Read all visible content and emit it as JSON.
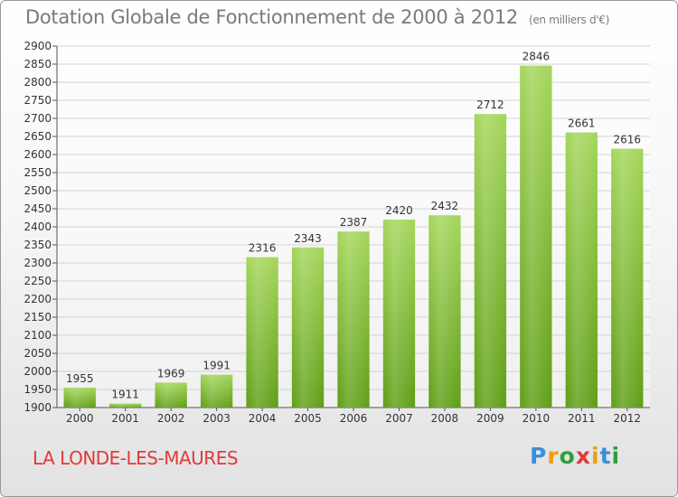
{
  "title": "Dotation Globale de Fonctionnement de 2000 à 2012",
  "unit": "(en milliers d'€)",
  "place": "LA LONDE-LES-MAURES",
  "logo": {
    "letters": [
      "P",
      "r",
      "o",
      "x",
      "i",
      "t",
      "i"
    ],
    "colors": [
      "#3a8fd9",
      "#f39c12",
      "#2e9e3a",
      "#e23a3a",
      "#f39c12",
      "#3a8fd9",
      "#2e9e3a"
    ]
  },
  "colors": {
    "bar_top": "#a3d65a",
    "bar_bottom": "#5f9e16",
    "grid": "#d4d4d4",
    "title": "#7a7a7a",
    "place": "#e23a3a"
  },
  "chart_data": {
    "type": "bar",
    "title": "Dotation Globale de Fonctionnement de 2000 à 2012",
    "categories": [
      "2000",
      "2001",
      "2002",
      "2003",
      "2004",
      "2005",
      "2006",
      "2007",
      "2008",
      "2009",
      "2010",
      "2011",
      "2012"
    ],
    "values": [
      1955,
      1911,
      1969,
      1991,
      2316,
      2343,
      2387,
      2420,
      2432,
      2712,
      2846,
      2661,
      2616
    ],
    "ylim": [
      1900,
      2900
    ],
    "ytick_step": 50,
    "grid": true
  }
}
